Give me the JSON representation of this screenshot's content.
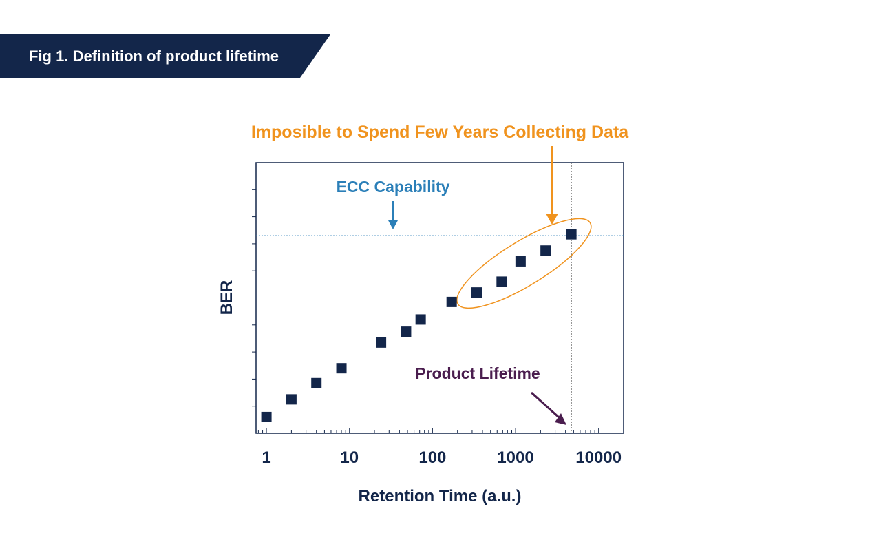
{
  "banner": {
    "title": "Fig 1. Definition of product lifetime"
  },
  "colors": {
    "navy": "#13264a",
    "orange": "#f0931e",
    "blue": "#2b7fb8",
    "purple": "#4a1d4e"
  },
  "chart_data": {
    "type": "scatter",
    "xscale": "log",
    "xlim": [
      0.75,
      20000
    ],
    "ylim": [
      0,
      10
    ],
    "x_ticks": [
      1,
      10,
      100,
      1000,
      10000
    ],
    "x_tick_labels": [
      "1",
      "10",
      "100",
      "1000",
      "10000"
    ],
    "xlabel": "Retention Time (a.u.)",
    "ylabel": "BER",
    "series": [
      {
        "name": "BER",
        "points": [
          {
            "x": 1,
            "y": 0.6
          },
          {
            "x": 2,
            "y": 1.25
          },
          {
            "x": 4,
            "y": 1.85
          },
          {
            "x": 8,
            "y": 2.4
          },
          {
            "x": 24,
            "y": 3.35
          },
          {
            "x": 48,
            "y": 3.75
          },
          {
            "x": 72,
            "y": 4.2
          },
          {
            "x": 170,
            "y": 4.85
          },
          {
            "x": 340,
            "y": 5.2
          },
          {
            "x": 680,
            "y": 5.6
          },
          {
            "x": 1150,
            "y": 6.35
          },
          {
            "x": 2300,
            "y": 6.75
          },
          {
            "x": 4700,
            "y": 7.35
          }
        ]
      }
    ],
    "ecc_level": 7.3,
    "lifetime_x": 4700,
    "annotations": {
      "ecc": "ECC Capability",
      "collect": "Imposible to Spend Few Years Collecting Data",
      "lifetime": "Product Lifetime"
    }
  }
}
